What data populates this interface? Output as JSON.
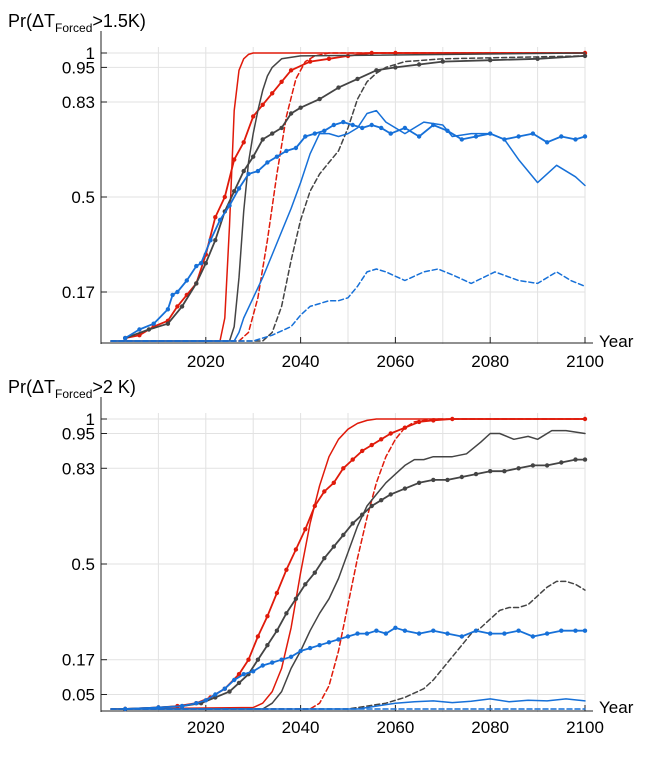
{
  "chart_data": [
    {
      "type": "line",
      "title_prefix": "Pr(ΔT",
      "title_sub": "Forced",
      "title_suffix": ">1.5K)",
      "xlabel": "Year",
      "ylabel": "",
      "xlim": [
        2000,
        2100
      ],
      "ylim": [
        0,
        1
      ],
      "grid": true,
      "xticks": [
        2020,
        2040,
        2060,
        2080,
        2100
      ],
      "yticks": [
        0.17,
        0.5,
        0.83,
        0.95,
        1
      ],
      "ytick_labels": [
        "0.17",
        "0.5",
        "0.83",
        "0.95",
        "1"
      ],
      "series": [
        {
          "name": "red-solid",
          "color": "#e01a0a",
          "style": "solid",
          "markers": false,
          "x": [
            2000,
            2023,
            2024,
            2025,
            2026,
            2027,
            2028,
            2029,
            2030,
            2032,
            2100
          ],
          "y": [
            0,
            0,
            0.08,
            0.4,
            0.8,
            0.94,
            0.98,
            0.995,
            1,
            1,
            1
          ]
        },
        {
          "name": "red-dashed",
          "color": "#e01a0a",
          "style": "dashed",
          "markers": false,
          "x": [
            2000,
            2027,
            2029,
            2031,
            2033,
            2035,
            2037,
            2039,
            2041,
            2043,
            2046,
            2050,
            2100
          ],
          "y": [
            0,
            0,
            0.03,
            0.15,
            0.35,
            0.58,
            0.78,
            0.91,
            0.97,
            0.99,
            1,
            1,
            1
          ]
        },
        {
          "name": "red-dots",
          "color": "#e01a0a",
          "style": "solid",
          "markers": true,
          "x": [
            2003,
            2006,
            2009,
            2012,
            2014,
            2016,
            2018,
            2020,
            2022,
            2024,
            2026,
            2028,
            2030,
            2032,
            2034,
            2036,
            2038,
            2042,
            2046,
            2050,
            2055,
            2060,
            2100
          ],
          "y": [
            0.01,
            0.02,
            0.05,
            0.07,
            0.12,
            0.16,
            0.2,
            0.3,
            0.43,
            0.5,
            0.63,
            0.69,
            0.78,
            0.82,
            0.86,
            0.9,
            0.94,
            0.97,
            0.98,
            0.99,
            1,
            1,
            1
          ]
        },
        {
          "name": "gray-solid",
          "color": "#444444",
          "style": "solid",
          "markers": false,
          "x": [
            2000,
            2025,
            2026,
            2027,
            2028,
            2029,
            2030,
            2031,
            2032,
            2033,
            2034,
            2036,
            2040,
            2100
          ],
          "y": [
            0,
            0,
            0.05,
            0.22,
            0.45,
            0.62,
            0.72,
            0.8,
            0.87,
            0.92,
            0.95,
            0.98,
            0.99,
            1
          ]
        },
        {
          "name": "gray-dashed",
          "color": "#444444",
          "style": "dashed",
          "markers": false,
          "x": [
            2000,
            2032,
            2034,
            2036,
            2038,
            2040,
            2042,
            2044,
            2046,
            2048,
            2050,
            2052,
            2054,
            2056,
            2058,
            2062,
            2070,
            2100
          ],
          "y": [
            0,
            0,
            0.03,
            0.12,
            0.28,
            0.42,
            0.52,
            0.58,
            0.62,
            0.66,
            0.74,
            0.84,
            0.9,
            0.93,
            0.95,
            0.97,
            0.98,
            0.99
          ]
        },
        {
          "name": "gray-dots",
          "color": "#444444",
          "style": "solid",
          "markers": true,
          "x": [
            2003,
            2008,
            2012,
            2015,
            2018,
            2020,
            2022,
            2024,
            2026,
            2028,
            2030,
            2032,
            2034,
            2036,
            2038,
            2040,
            2044,
            2048,
            2052,
            2056,
            2060,
            2065,
            2070,
            2080,
            2090,
            2100
          ],
          "y": [
            0.01,
            0.04,
            0.06,
            0.12,
            0.2,
            0.27,
            0.35,
            0.45,
            0.52,
            0.59,
            0.64,
            0.7,
            0.72,
            0.74,
            0.79,
            0.81,
            0.84,
            0.88,
            0.91,
            0.94,
            0.95,
            0.96,
            0.97,
            0.975,
            0.98,
            0.99
          ]
        },
        {
          "name": "blue-solid",
          "color": "#1670d8",
          "style": "solid",
          "markers": false,
          "x": [
            2000,
            2026,
            2027,
            2028,
            2030,
            2032,
            2034,
            2036,
            2038,
            2040,
            2042,
            2044,
            2046,
            2048,
            2050,
            2052,
            2054,
            2056,
            2058,
            2062,
            2066,
            2070,
            2072,
            2076,
            2080,
            2083,
            2086,
            2090,
            2094,
            2098,
            2100
          ],
          "y": [
            0,
            0,
            0.03,
            0.08,
            0.15,
            0.22,
            0.3,
            0.38,
            0.46,
            0.55,
            0.65,
            0.72,
            0.72,
            0.71,
            0.72,
            0.74,
            0.79,
            0.8,
            0.76,
            0.72,
            0.76,
            0.75,
            0.71,
            0.72,
            0.72,
            0.7,
            0.63,
            0.55,
            0.61,
            0.57,
            0.54
          ]
        },
        {
          "name": "blue-dashed",
          "color": "#1670d8",
          "style": "dashed",
          "markers": false,
          "x": [
            2000,
            2030,
            2034,
            2038,
            2040,
            2042,
            2044,
            2046,
            2048,
            2050,
            2052,
            2054,
            2056,
            2058,
            2062,
            2066,
            2069,
            2072,
            2076,
            2081,
            2086,
            2090,
            2094,
            2097,
            2100
          ],
          "y": [
            0,
            0,
            0.02,
            0.05,
            0.09,
            0.12,
            0.13,
            0.14,
            0.14,
            0.15,
            0.19,
            0.24,
            0.25,
            0.24,
            0.21,
            0.24,
            0.25,
            0.23,
            0.2,
            0.24,
            0.21,
            0.2,
            0.24,
            0.21,
            0.19
          ]
        },
        {
          "name": "blue-dots",
          "color": "#1670d8",
          "style": "solid",
          "markers": true,
          "x": [
            2003,
            2006,
            2009,
            2012,
            2013,
            2014,
            2016,
            2018,
            2019,
            2021,
            2023,
            2025,
            2027,
            2029,
            2031,
            2033,
            2035,
            2037,
            2039,
            2041,
            2043,
            2045,
            2047,
            2049,
            2051,
            2053,
            2055,
            2057,
            2059,
            2062,
            2065,
            2068,
            2071,
            2074,
            2077,
            2080,
            2083,
            2086,
            2089,
            2092,
            2095,
            2098,
            2100
          ],
          "y": [
            0.01,
            0.04,
            0.06,
            0.11,
            0.16,
            0.17,
            0.21,
            0.26,
            0.27,
            0.35,
            0.42,
            0.47,
            0.53,
            0.58,
            0.59,
            0.62,
            0.64,
            0.66,
            0.67,
            0.71,
            0.72,
            0.73,
            0.75,
            0.76,
            0.75,
            0.74,
            0.75,
            0.74,
            0.72,
            0.74,
            0.71,
            0.75,
            0.73,
            0.7,
            0.71,
            0.72,
            0.7,
            0.71,
            0.72,
            0.69,
            0.71,
            0.7,
            0.71
          ]
        }
      ]
    },
    {
      "type": "line",
      "title_prefix": "Pr(ΔT",
      "title_sub": "Forced",
      "title_suffix": ">2 K)",
      "xlabel": "Year",
      "ylabel": "",
      "xlim": [
        2000,
        2100
      ],
      "ylim": [
        0,
        1
      ],
      "grid": true,
      "xticks": [
        2020,
        2040,
        2060,
        2080,
        2100
      ],
      "yticks": [
        0.05,
        0.17,
        0.5,
        0.83,
        0.95,
        1
      ],
      "ytick_labels": [
        "0.05",
        "0.17",
        "0.5",
        "0.83",
        "0.95",
        "1"
      ],
      "series": [
        {
          "name": "red-solid",
          "color": "#e01a0a",
          "style": "solid",
          "markers": false,
          "x": [
            2000,
            2030,
            2032,
            2034,
            2036,
            2038,
            2040,
            2042,
            2044,
            2046,
            2048,
            2050,
            2052,
            2054,
            2056,
            2060,
            2100
          ],
          "y": [
            0,
            0.005,
            0.02,
            0.06,
            0.14,
            0.28,
            0.47,
            0.64,
            0.77,
            0.87,
            0.93,
            0.965,
            0.985,
            0.995,
            1,
            1,
            1
          ]
        },
        {
          "name": "red-dashed",
          "color": "#e01a0a",
          "style": "dashed",
          "markers": false,
          "x": [
            2000,
            2042,
            2044,
            2046,
            2048,
            2050,
            2052,
            2054,
            2056,
            2058,
            2060,
            2062,
            2064,
            2066,
            2068,
            2072,
            2100
          ],
          "y": [
            0,
            0,
            0.02,
            0.08,
            0.2,
            0.36,
            0.52,
            0.66,
            0.78,
            0.87,
            0.93,
            0.97,
            0.99,
            0.995,
            1,
            1,
            1
          ]
        },
        {
          "name": "red-dots",
          "color": "#e01a0a",
          "style": "solid",
          "markers": true,
          "x": [
            2003,
            2010,
            2014,
            2018,
            2021,
            2024,
            2027,
            2029,
            2031,
            2033,
            2035,
            2037,
            2039,
            2041,
            2043,
            2045,
            2047,
            2049,
            2051,
            2053,
            2055,
            2057,
            2059,
            2062,
            2065,
            2068,
            2072,
            2100
          ],
          "y": [
            0,
            0.005,
            0.01,
            0.02,
            0.04,
            0.07,
            0.12,
            0.17,
            0.25,
            0.32,
            0.4,
            0.48,
            0.55,
            0.62,
            0.7,
            0.75,
            0.78,
            0.83,
            0.86,
            0.89,
            0.91,
            0.93,
            0.95,
            0.97,
            0.99,
            0.995,
            1,
            1
          ]
        },
        {
          "name": "gray-solid",
          "color": "#444444",
          "style": "solid",
          "markers": false,
          "x": [
            2000,
            2032,
            2034,
            2036,
            2038,
            2040,
            2042,
            2044,
            2046,
            2048,
            2050,
            2052,
            2054,
            2056,
            2058,
            2060,
            2062,
            2064,
            2066,
            2068,
            2070,
            2072,
            2075,
            2078,
            2080,
            2082,
            2085,
            2088,
            2090,
            2093,
            2096,
            2100
          ],
          "y": [
            0,
            0,
            0.02,
            0.06,
            0.14,
            0.2,
            0.27,
            0.33,
            0.38,
            0.45,
            0.54,
            0.63,
            0.7,
            0.74,
            0.78,
            0.81,
            0.84,
            0.86,
            0.86,
            0.87,
            0.87,
            0.87,
            0.88,
            0.92,
            0.95,
            0.95,
            0.93,
            0.94,
            0.93,
            0.96,
            0.96,
            0.95
          ]
        },
        {
          "name": "gray-dashed",
          "color": "#444444",
          "style": "dashed",
          "markers": false,
          "x": [
            2000,
            2050,
            2054,
            2058,
            2062,
            2066,
            2068,
            2070,
            2072,
            2074,
            2076,
            2078,
            2080,
            2082,
            2084,
            2086,
            2088,
            2090,
            2092,
            2094,
            2096,
            2098,
            2100
          ],
          "y": [
            0,
            0,
            0.01,
            0.02,
            0.04,
            0.07,
            0.1,
            0.14,
            0.18,
            0.22,
            0.26,
            0.28,
            0.31,
            0.34,
            0.35,
            0.35,
            0.36,
            0.39,
            0.42,
            0.44,
            0.44,
            0.43,
            0.41
          ]
        },
        {
          "name": "gray-dots",
          "color": "#444444",
          "style": "solid",
          "markers": true,
          "x": [
            2003,
            2010,
            2015,
            2019,
            2022,
            2025,
            2027,
            2029,
            2031,
            2033,
            2035,
            2037,
            2039,
            2041,
            2043,
            2045,
            2047,
            2049,
            2051,
            2053,
            2055,
            2057,
            2059,
            2062,
            2065,
            2068,
            2071,
            2074,
            2077,
            2080,
            2083,
            2086,
            2089,
            2092,
            2095,
            2098,
            2100
          ],
          "y": [
            0,
            0.005,
            0.01,
            0.02,
            0.04,
            0.06,
            0.09,
            0.12,
            0.17,
            0.22,
            0.27,
            0.33,
            0.38,
            0.43,
            0.47,
            0.52,
            0.56,
            0.6,
            0.64,
            0.67,
            0.7,
            0.72,
            0.74,
            0.76,
            0.78,
            0.79,
            0.79,
            0.8,
            0.81,
            0.82,
            0.82,
            0.83,
            0.84,
            0.84,
            0.85,
            0.86,
            0.86
          ]
        },
        {
          "name": "blue-solid",
          "color": "#1670d8",
          "style": "solid",
          "markers": false,
          "x": [
            2000,
            2052,
            2056,
            2060,
            2064,
            2068,
            2072,
            2076,
            2080,
            2084,
            2088,
            2092,
            2096,
            2100
          ],
          "y": [
            0,
            0,
            0.01,
            0.02,
            0.025,
            0.028,
            0.022,
            0.027,
            0.035,
            0.025,
            0.03,
            0.028,
            0.035,
            0.028
          ]
        },
        {
          "name": "blue-dashed",
          "color": "#1670d8",
          "style": "dashed",
          "markers": false,
          "x": [
            2000,
            2100
          ],
          "y": [
            0,
            0
          ]
        },
        {
          "name": "blue-dots",
          "color": "#1670d8",
          "style": "solid",
          "markers": true,
          "x": [
            2003,
            2010,
            2015,
            2018,
            2020,
            2022,
            2024,
            2026,
            2028,
            2030,
            2032,
            2034,
            2036,
            2038,
            2040,
            2042,
            2044,
            2046,
            2048,
            2050,
            2052,
            2054,
            2056,
            2058,
            2060,
            2062,
            2065,
            2068,
            2071,
            2074,
            2077,
            2080,
            2083,
            2086,
            2089,
            2092,
            2095,
            2098,
            2100
          ],
          "y": [
            0,
            0.005,
            0.01,
            0.02,
            0.03,
            0.05,
            0.07,
            0.1,
            0.12,
            0.13,
            0.15,
            0.16,
            0.17,
            0.18,
            0.2,
            0.21,
            0.22,
            0.23,
            0.24,
            0.25,
            0.26,
            0.26,
            0.27,
            0.26,
            0.28,
            0.27,
            0.26,
            0.27,
            0.26,
            0.25,
            0.27,
            0.26,
            0.26,
            0.27,
            0.25,
            0.26,
            0.27,
            0.27,
            0.27
          ]
        }
      ]
    }
  ]
}
